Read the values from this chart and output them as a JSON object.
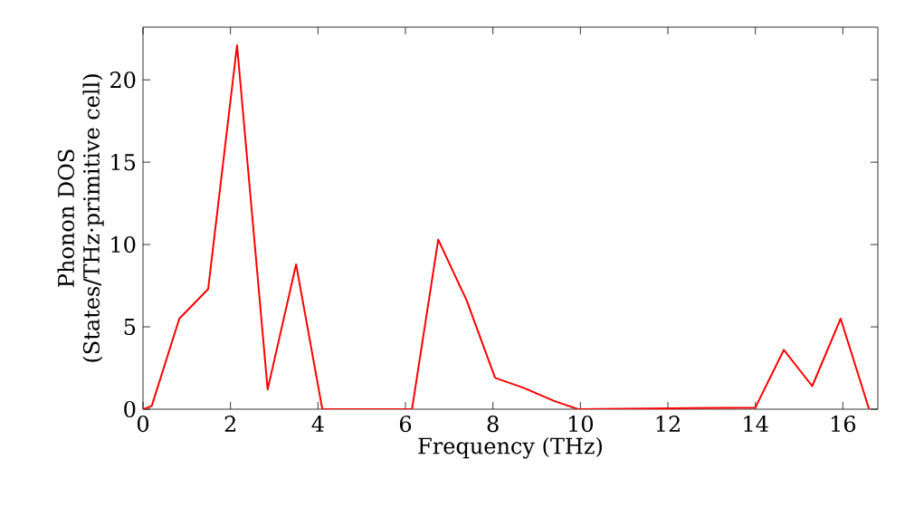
{
  "chart_data": {
    "type": "line",
    "xlabel": "Frequency (THz)",
    "ylabel": "Phonon DOS\n(States/THz·primitive cell)",
    "x": [
      0,
      0.2,
      0.83,
      1.49,
      2.15,
      2.85,
      3.5,
      4.1,
      6.15,
      6.75,
      7.4,
      8.05,
      8.7,
      9.4,
      9.95,
      14,
      14.65,
      15.3,
      15.95,
      16.6
    ],
    "series": [
      {
        "color": "#ff0000",
        "values": [
          0,
          0.2,
          5.5,
          7.3,
          22.1,
          1.2,
          8.8,
          0,
          0,
          10.3,
          6.6,
          1.9,
          1.3,
          0.5,
          0,
          0.1,
          3.6,
          1.4,
          5.5,
          0
        ]
      }
    ],
    "xlim": [
      0,
      16.8
    ],
    "ylim": [
      0,
      23.2
    ],
    "xticks": [
      0,
      2,
      4,
      6,
      8,
      10,
      12,
      14,
      16
    ],
    "yticks": [
      0,
      5,
      10,
      15,
      20
    ],
    "grid": false,
    "marker": "none",
    "line_style": "solid"
  }
}
